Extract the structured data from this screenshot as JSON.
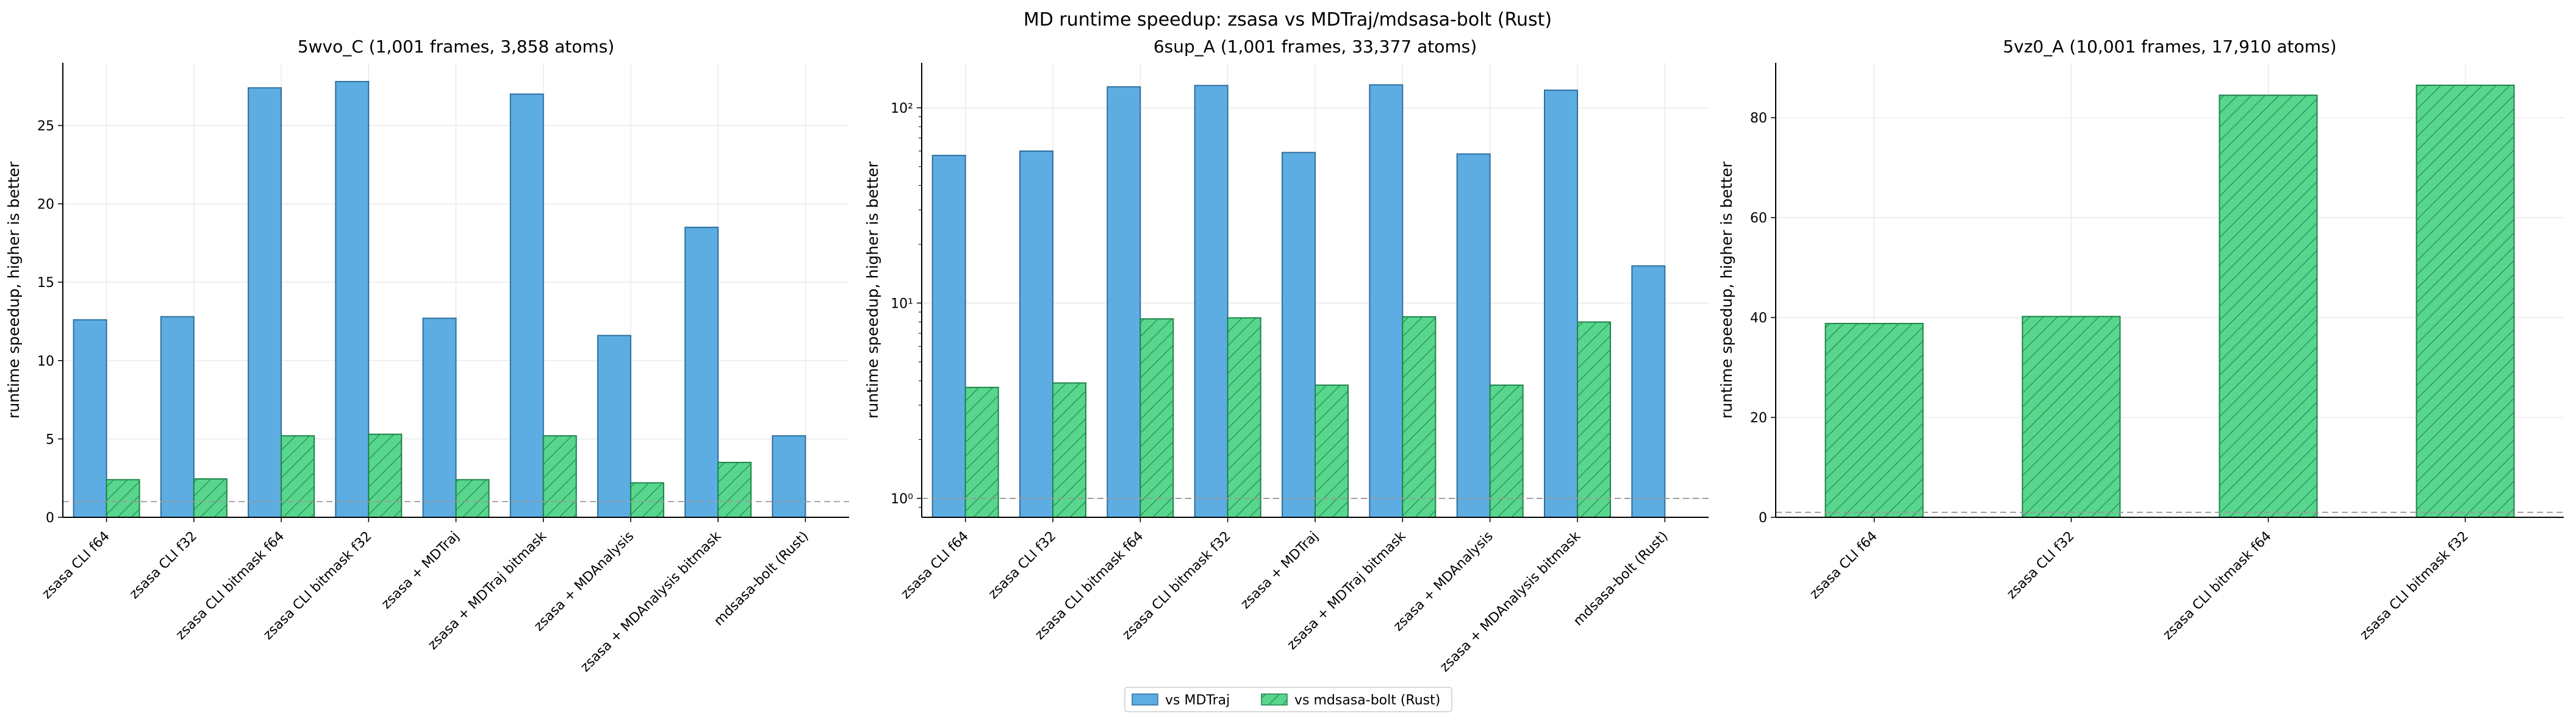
{
  "figure": {
    "title": "MD runtime speedup: zsasa vs MDTraj/mdsasa-bolt (Rust)",
    "legend": {
      "placement": "bottom-center",
      "entries": [
        {
          "label": "vs MDTraj",
          "color": "#5DADE2",
          "hatch": false
        },
        {
          "label": "vs mdsasa-bolt (Rust)",
          "color": "#58D68D",
          "hatch": true
        }
      ]
    }
  },
  "chart_data": [
    {
      "type": "bar",
      "title": "5wvo_C (1,001 frames, 3,858 atoms)",
      "ylabel": "runtime speedup, higher is better",
      "xlabel": "",
      "yscale": "linear",
      "ylim": [
        0,
        29
      ],
      "yticks": [
        0,
        5,
        10,
        15,
        20,
        25
      ],
      "ytick_labels": [
        "0",
        "5",
        "10",
        "15",
        "20",
        "25"
      ],
      "reference_line": 1,
      "grid": true,
      "categories": [
        "zsasa CLI f64",
        "zsasa CLI f32",
        "zsasa CLI bitmask f64",
        "zsasa CLI bitmask f32",
        "zsasa + MDTraj",
        "zsasa + MDTraj bitmask",
        "zsasa + MDAnalysis",
        "zsasa + MDAnalysis bitmask",
        "mdsasa-bolt (Rust)"
      ],
      "series": [
        {
          "name": "vs MDTraj",
          "values": [
            12.6,
            12.8,
            27.4,
            27.8,
            12.7,
            27.0,
            11.6,
            18.5,
            5.2
          ]
        },
        {
          "name": "vs mdsasa-bolt (Rust)",
          "values": [
            2.4,
            2.45,
            5.2,
            5.3,
            2.4,
            5.2,
            2.2,
            3.5,
            null
          ]
        }
      ]
    },
    {
      "type": "bar",
      "title": "6sup_A (1,001 frames, 33,377 atoms)",
      "ylabel": "runtime speedup, higher is better",
      "xlabel": "",
      "yscale": "log",
      "ylim": [
        0.8,
        170
      ],
      "yticks": [
        1,
        10,
        100
      ],
      "ytick_labels": [
        "10⁰",
        "10¹",
        "10²"
      ],
      "reference_line": 1,
      "grid": true,
      "categories": [
        "zsasa CLI f64",
        "zsasa CLI f32",
        "zsasa CLI bitmask f64",
        "zsasa CLI bitmask f32",
        "zsasa + MDTraj",
        "zsasa + MDTraj bitmask",
        "zsasa + MDAnalysis",
        "zsasa + MDAnalysis bitmask",
        "mdsasa-bolt (Rust)"
      ],
      "series": [
        {
          "name": "vs MDTraj",
          "values": [
            57,
            60,
            128,
            130,
            59,
            131,
            58,
            123,
            15.5
          ]
        },
        {
          "name": "vs mdsasa-bolt (Rust)",
          "values": [
            3.7,
            3.9,
            8.3,
            8.4,
            3.8,
            8.5,
            3.8,
            8.0,
            null
          ]
        }
      ]
    },
    {
      "type": "bar",
      "title": "5vz0_A (10,001 frames, 17,910 atoms)",
      "ylabel": "runtime speedup, higher is better",
      "xlabel": "",
      "yscale": "linear",
      "ylim": [
        0,
        91
      ],
      "yticks": [
        0,
        20,
        40,
        60,
        80
      ],
      "ytick_labels": [
        "0",
        "20",
        "40",
        "60",
        "80"
      ],
      "reference_line": 1,
      "grid": true,
      "categories": [
        "zsasa CLI f64",
        "zsasa CLI f32",
        "zsasa CLI bitmask f64",
        "zsasa CLI bitmask f32"
      ],
      "series": [
        {
          "name": "vs mdsasa-bolt (Rust)",
          "values": [
            38.8,
            40.2,
            84.5,
            86.5
          ]
        }
      ]
    }
  ]
}
